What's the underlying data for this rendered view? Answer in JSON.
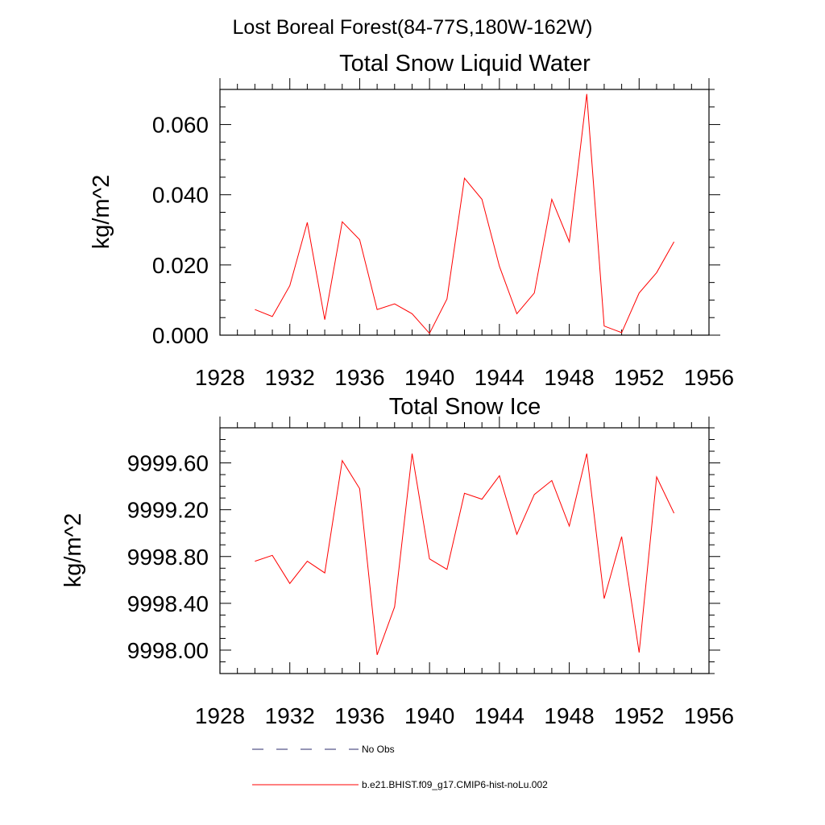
{
  "figure_title": "Lost Boreal Forest(84-77S,180W-162W)",
  "chart_data": [
    {
      "type": "line",
      "title": "Total Snow Liquid Water",
      "xlabel": "",
      "ylabel": "kg/m^2",
      "xlim": [
        1928,
        1956
      ],
      "ylim": [
        0,
        0.07
      ],
      "x_ticks": [
        1928,
        1932,
        1936,
        1940,
        1944,
        1948,
        1952,
        1956
      ],
      "x_tick_labels": [
        "1928",
        "1932",
        "1936",
        "1940",
        "1944",
        "1948",
        "1952",
        "1956"
      ],
      "y_ticks": [
        0,
        0.02,
        0.04,
        0.06
      ],
      "y_tick_labels": [
        "0.000",
        "0.020",
        "0.040",
        "0.060"
      ],
      "x": [
        1930,
        1931,
        1932,
        1933,
        1934,
        1935,
        1936,
        1937,
        1938,
        1939,
        1940,
        1941,
        1942,
        1943,
        1944,
        1945,
        1946,
        1947,
        1948,
        1949,
        1950,
        1951,
        1952,
        1953,
        1954
      ],
      "series": [
        {
          "name": "b.e21.BHIST.f09_g17.CMIP6-hist-noLu.002",
          "color": "#ff0000",
          "values": [
            0.0073,
            0.0053,
            0.0141,
            0.0321,
            0.0044,
            0.0323,
            0.0272,
            0.0073,
            0.0089,
            0.0061,
            0.0005,
            0.0103,
            0.0447,
            0.0387,
            0.0196,
            0.0061,
            0.012,
            0.0387,
            0.0266,
            0.0687,
            0.0026,
            0.0007,
            0.012,
            0.0178,
            0.0266
          ]
        }
      ]
    },
    {
      "type": "line",
      "title": "Total Snow Ice",
      "xlabel": "",
      "ylabel": "kg/m^2",
      "xlim": [
        1928,
        1956
      ],
      "ylim": [
        9997.8,
        9999.9
      ],
      "x_ticks": [
        1928,
        1932,
        1936,
        1940,
        1944,
        1948,
        1952,
        1956
      ],
      "x_tick_labels": [
        "1928",
        "1932",
        "1936",
        "1940",
        "1944",
        "1948",
        "1952",
        "1956"
      ],
      "y_ticks": [
        9998.0,
        9998.4,
        9998.8,
        9999.2,
        9999.6
      ],
      "y_tick_labels": [
        "9998.00",
        "9998.40",
        "9998.80",
        "9999.20",
        "9999.60"
      ],
      "x": [
        1930,
        1931,
        1932,
        1933,
        1934,
        1935,
        1936,
        1937,
        1938,
        1939,
        1940,
        1941,
        1942,
        1943,
        1944,
        1945,
        1946,
        1947,
        1948,
        1949,
        1950,
        1951,
        1952,
        1953,
        1954
      ],
      "series": [
        {
          "name": "b.e21.BHIST.f09_g17.CMIP6-hist-noLu.002",
          "color": "#ff0000",
          "values": [
            9998.76,
            9998.81,
            9998.57,
            9998.76,
            9998.66,
            9999.62,
            9999.38,
            9997.96,
            9998.37,
            9999.68,
            9998.78,
            9998.69,
            9999.34,
            9999.29,
            9999.49,
            9998.99,
            9999.33,
            9999.45,
            9999.06,
            9999.68,
            9998.44,
            9998.97,
            9997.98,
            9999.48,
            9999.17
          ]
        }
      ]
    }
  ],
  "legend": [
    {
      "label": "No Obs",
      "style": "dashed",
      "color": "#2b2b6b"
    },
    {
      "label": "b.e21.BHIST.f09_g17.CMIP6-hist-noLu.002",
      "style": "solid",
      "color": "#ff0000"
    }
  ]
}
